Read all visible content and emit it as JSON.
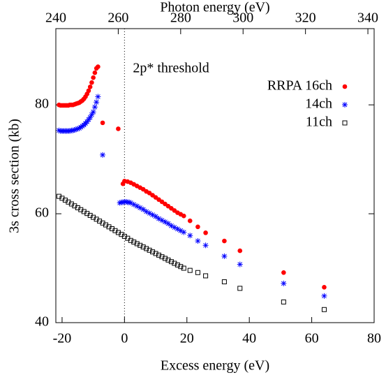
{
  "chart_data": {
    "type": "scatter",
    "xlabel": "Excess energy (eV)",
    "ylabel": "3s cross section (kb)",
    "x2label": "Photon energy (eV)",
    "xlim": [
      -22,
      80
    ],
    "xticks": [
      -20,
      0,
      20,
      40,
      60,
      80
    ],
    "x2lim": [
      240,
      342
    ],
    "x2ticks": [
      240,
      260,
      280,
      300,
      320,
      340
    ],
    "ylim": [
      40,
      94
    ],
    "yticks": [
      40,
      60,
      80
    ],
    "legend": "upper right",
    "annotation": {
      "text": "2p* threshold",
      "x": 0
    },
    "series": [
      {
        "name": "RRPA 16ch",
        "color": "#ff0000",
        "marker": "circle",
        "x": [
          -21,
          -20.5,
          -20,
          -19.5,
          -19,
          -18.5,
          -18,
          -17.5,
          -17,
          -16.5,
          -16,
          -15.5,
          -15,
          -14.5,
          -14,
          -13.5,
          -13,
          -12.5,
          -12,
          -11.5,
          -11,
          -10.5,
          -10,
          -9.5,
          -9,
          -8.5,
          -7,
          -2,
          -0.5,
          0,
          1,
          2,
          3,
          4,
          5,
          6,
          7,
          8,
          9,
          10,
          11,
          12,
          13,
          14,
          15,
          16,
          17,
          18,
          19,
          21,
          23.5,
          26,
          32,
          37,
          51,
          64
        ],
        "values": [
          80.0,
          79.9,
          79.9,
          79.9,
          79.9,
          79.9,
          79.9,
          80.0,
          80.0,
          80.0,
          80.1,
          80.2,
          80.3,
          80.4,
          80.6,
          80.8,
          81.1,
          81.5,
          82.0,
          82.6,
          83.3,
          84.1,
          85.0,
          85.9,
          86.7,
          87.0,
          76.7,
          75.6,
          65.5,
          66.0,
          65.9,
          65.7,
          65.4,
          65.1,
          64.8,
          64.5,
          64.1,
          63.8,
          63.4,
          63.0,
          62.6,
          62.2,
          61.8,
          61.4,
          61.0,
          60.6,
          60.2,
          59.9,
          59.6,
          58.7,
          57.6,
          56.5,
          55.0,
          53.2,
          49.2,
          46.5
        ]
      },
      {
        "name": "14ch",
        "color": "#0000ff",
        "marker": "star",
        "x": [
          -21,
          -20.5,
          -20,
          -19.5,
          -19,
          -18.5,
          -18,
          -17.5,
          -17,
          -16.5,
          -16,
          -15.5,
          -15,
          -14.5,
          -14,
          -13.5,
          -13,
          -12.5,
          -12,
          -11.5,
          -11,
          -10.5,
          -10,
          -9.5,
          -9,
          -8.5,
          -7,
          -1.5,
          -1,
          -0.5,
          0,
          0.5,
          1,
          1.5,
          2,
          3,
          4,
          5,
          6,
          7,
          8,
          9,
          10,
          11,
          12,
          13,
          14,
          15,
          16,
          17,
          18,
          19,
          21,
          23.5,
          26,
          32,
          37,
          51,
          64
        ],
        "values": [
          75.3,
          75.2,
          75.2,
          75.2,
          75.2,
          75.2,
          75.2,
          75.2,
          75.3,
          75.3,
          75.4,
          75.5,
          75.6,
          75.7,
          75.9,
          76.1,
          76.3,
          76.6,
          76.9,
          77.3,
          77.7,
          78.2,
          78.7,
          79.6,
          80.5,
          81.5,
          70.8,
          62.0,
          62.1,
          62.1,
          62.2,
          62.2,
          62.1,
          62.1,
          62.0,
          61.7,
          61.4,
          61.1,
          60.8,
          60.4,
          60.1,
          59.8,
          59.5,
          59.1,
          58.8,
          58.5,
          58.2,
          57.8,
          57.5,
          57.2,
          56.9,
          56.6,
          56.0,
          55.0,
          54.2,
          52.2,
          50.7,
          47.2,
          44.9
        ]
      },
      {
        "name": "11ch",
        "color": "#000000",
        "marker": "square",
        "x": [
          -21,
          -20,
          -19,
          -18,
          -17,
          -16,
          -15,
          -14,
          -13,
          -12,
          -11,
          -10,
          -9,
          -8,
          -7,
          -6,
          -5,
          -4,
          -3,
          -2,
          -1,
          0,
          1,
          2,
          3,
          4,
          5,
          6,
          7,
          8,
          9,
          10,
          11,
          12,
          13,
          14,
          15,
          16,
          17,
          18,
          19,
          21,
          23.5,
          26,
          32,
          37,
          51,
          64
        ],
        "values": [
          63.2,
          62.85,
          62.5,
          62.15,
          61.8,
          61.45,
          61.1,
          60.75,
          60.4,
          60.05,
          59.7,
          59.35,
          59.0,
          58.65,
          58.3,
          57.95,
          57.6,
          57.25,
          56.9,
          56.55,
          56.2,
          55.85,
          55.5,
          55.1,
          54.8,
          54.5,
          54.2,
          53.9,
          53.6,
          53.3,
          53.0,
          52.7,
          52.4,
          52.1,
          51.8,
          51.5,
          51.2,
          50.9,
          50.6,
          50.3,
          50.0,
          49.6,
          49.2,
          48.6,
          47.5,
          46.3,
          43.8,
          42.4
        ]
      }
    ]
  }
}
